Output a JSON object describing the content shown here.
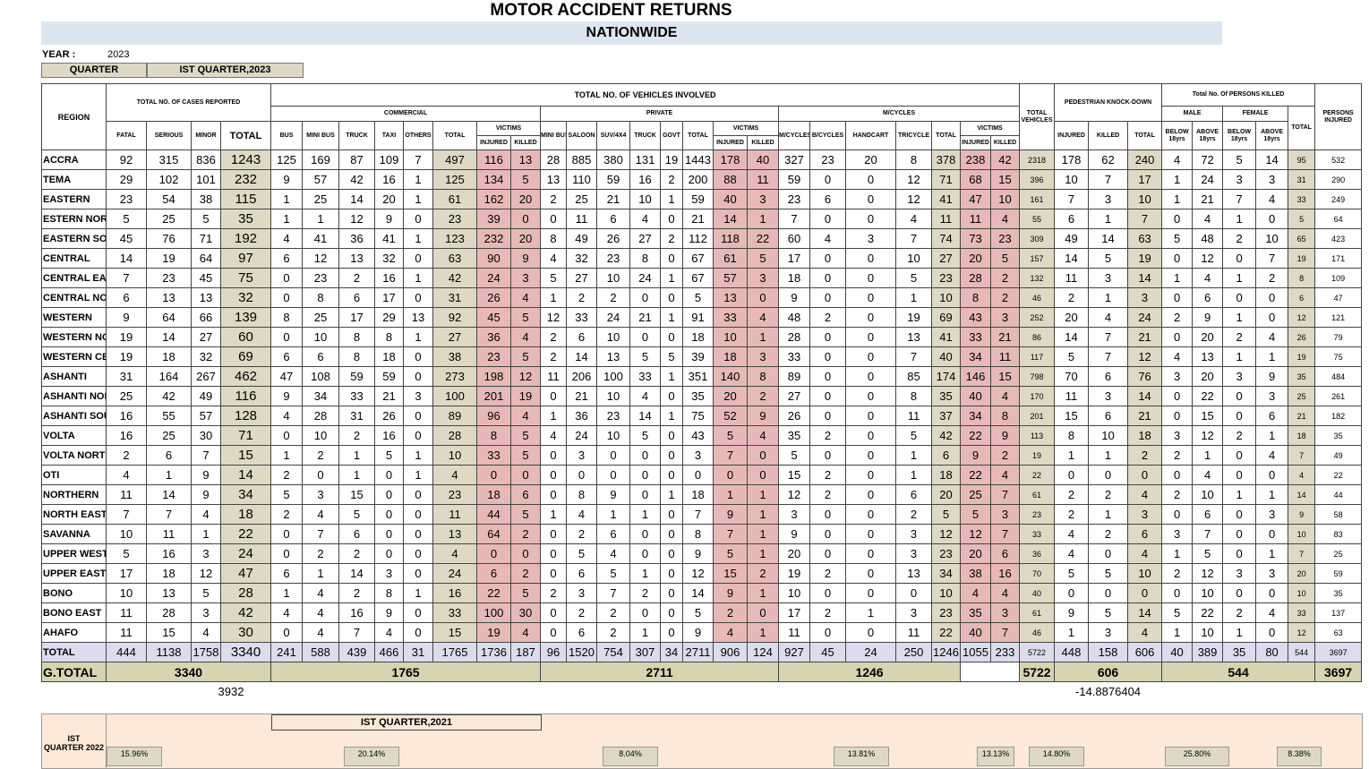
{
  "title": "MOTOR ACCIDENT RETURNS",
  "subtitle": "NATIONWIDE",
  "year_label": "YEAR :",
  "year": "2023",
  "quarter_label": "QUARTER",
  "quarter": "IST QUARTER,2023",
  "table": {
    "header": {
      "region": "REGION",
      "cases": "TOTAL NO. OF CASES REPORTED",
      "vehicles": "TOTAL NO. OF VEHICLES INVOLVED",
      "commercial": "COMMERCIAL",
      "private": "PRIVATE",
      "mcycles": "M/CYCLES",
      "total_vehicles": "TOTAL VEHICLES",
      "pedestrian": "PEDESTRIAN KNOCK-DOWN",
      "killed": "Total No. Of PERSONS KILLED",
      "male": "MALE",
      "female": "FEMALE",
      "killed_total": "TOTAL",
      "persons_injured": "PERSONS INJURED",
      "victims": "VICTIMS",
      "injured": "INJURED",
      "killed_lbl": "KILLED",
      "cases_cols": [
        "FATAL",
        "SERIOUS",
        "MINOR",
        "TOTAL"
      ],
      "commercial_cols": [
        "BUS",
        "MINI BUS",
        "TRUCK",
        "TAXI",
        "OTHERS",
        "TOTAL"
      ],
      "private_cols": [
        "MINI BUS",
        "SALOON",
        "SUV/4X4",
        "TRUCK",
        "GOVT",
        "TOTAL"
      ],
      "moto_cols": [
        "M/CYCLES",
        "B/CYCLES",
        "HANDCART",
        "TRICYCLE",
        "TOTAL"
      ],
      "ped_cols": [
        "INJURED",
        "KILLED",
        "TOTAL"
      ],
      "killed_cols": [
        "BELOW 18yrs",
        "ABOVE 18yrs",
        "BELOW 18yrs",
        "ABOVE 18yrs"
      ]
    },
    "rows": [
      {
        "region": "ACCRA",
        "values": [
          92,
          315,
          836,
          1243,
          125,
          169,
          87,
          109,
          7,
          497,
          116,
          13,
          28,
          885,
          380,
          131,
          19,
          1443,
          178,
          40,
          327,
          23,
          20,
          8,
          378,
          238,
          42,
          2318,
          178,
          62,
          240,
          4,
          72,
          5,
          14,
          95,
          532
        ]
      },
      {
        "region": "TEMA",
        "values": [
          29,
          102,
          101,
          232,
          9,
          57,
          42,
          16,
          1,
          125,
          134,
          5,
          13,
          110,
          59,
          16,
          2,
          200,
          88,
          11,
          59,
          0,
          0,
          12,
          71,
          68,
          15,
          396,
          10,
          7,
          17,
          1,
          24,
          3,
          3,
          31,
          290
        ]
      },
      {
        "region": "EASTERN",
        "values": [
          23,
          54,
          38,
          115,
          1,
          25,
          14,
          20,
          1,
          61,
          162,
          20,
          2,
          25,
          21,
          10,
          1,
          59,
          40,
          3,
          23,
          6,
          0,
          12,
          41,
          47,
          10,
          161,
          7,
          3,
          10,
          1,
          21,
          7,
          4,
          33,
          249
        ]
      },
      {
        "region": "ESTERN NORT",
        "values": [
          5,
          25,
          5,
          35,
          1,
          1,
          12,
          9,
          0,
          23,
          39,
          0,
          0,
          11,
          6,
          4,
          0,
          21,
          14,
          1,
          7,
          0,
          0,
          4,
          11,
          11,
          4,
          55,
          6,
          1,
          7,
          0,
          4,
          1,
          0,
          5,
          64
        ]
      },
      {
        "region": "EASTERN SOU",
        "values": [
          45,
          76,
          71,
          192,
          4,
          41,
          36,
          41,
          1,
          123,
          232,
          20,
          8,
          49,
          26,
          27,
          2,
          112,
          118,
          22,
          60,
          4,
          3,
          7,
          74,
          73,
          23,
          309,
          49,
          14,
          63,
          5,
          48,
          2,
          10,
          65,
          423
        ]
      },
      {
        "region": "CENTRAL",
        "values": [
          14,
          19,
          64,
          97,
          6,
          12,
          13,
          32,
          0,
          63,
          90,
          9,
          4,
          32,
          23,
          8,
          0,
          67,
          61,
          5,
          17,
          0,
          0,
          10,
          27,
          20,
          5,
          157,
          14,
          5,
          19,
          0,
          12,
          0,
          7,
          19,
          171
        ]
      },
      {
        "region": "CENTRAL EAS",
        "values": [
          7,
          23,
          45,
          75,
          0,
          23,
          2,
          16,
          1,
          42,
          24,
          3,
          5,
          27,
          10,
          24,
          1,
          67,
          57,
          3,
          18,
          0,
          0,
          5,
          23,
          28,
          2,
          132,
          11,
          3,
          14,
          1,
          4,
          1,
          2,
          8,
          109
        ]
      },
      {
        "region": "CENTRAL NOR",
        "values": [
          6,
          13,
          13,
          32,
          0,
          8,
          6,
          17,
          0,
          31,
          26,
          4,
          1,
          2,
          2,
          0,
          0,
          5,
          13,
          0,
          9,
          0,
          0,
          1,
          10,
          8,
          2,
          46,
          2,
          1,
          3,
          0,
          6,
          0,
          0,
          6,
          47
        ]
      },
      {
        "region": "WESTERN",
        "values": [
          9,
          64,
          66,
          139,
          8,
          25,
          17,
          29,
          13,
          92,
          45,
          5,
          12,
          33,
          24,
          21,
          1,
          91,
          33,
          4,
          48,
          2,
          0,
          19,
          69,
          43,
          3,
          252,
          20,
          4,
          24,
          2,
          9,
          1,
          0,
          12,
          121
        ]
      },
      {
        "region": "WESTERN NO",
        "values": [
          19,
          14,
          27,
          60,
          0,
          10,
          8,
          8,
          1,
          27,
          36,
          4,
          2,
          6,
          10,
          0,
          0,
          18,
          10,
          1,
          28,
          0,
          0,
          13,
          41,
          33,
          21,
          86,
          14,
          7,
          21,
          0,
          20,
          2,
          4,
          26,
          79
        ]
      },
      {
        "region": "WESTERN CEI",
        "values": [
          19,
          18,
          32,
          69,
          6,
          6,
          8,
          18,
          0,
          38,
          23,
          5,
          2,
          14,
          13,
          5,
          5,
          39,
          18,
          3,
          33,
          0,
          0,
          7,
          40,
          34,
          11,
          117,
          5,
          7,
          12,
          4,
          13,
          1,
          1,
          19,
          75
        ]
      },
      {
        "region": "ASHANTI",
        "values": [
          31,
          164,
          267,
          462,
          47,
          108,
          59,
          59,
          0,
          273,
          198,
          12,
          11,
          206,
          100,
          33,
          1,
          351,
          140,
          8,
          89,
          0,
          0,
          85,
          174,
          146,
          15,
          798,
          70,
          6,
          76,
          3,
          20,
          3,
          9,
          35,
          484
        ]
      },
      {
        "region": "ASHANTI NOR",
        "values": [
          25,
          42,
          49,
          116,
          9,
          34,
          33,
          21,
          3,
          100,
          201,
          19,
          0,
          21,
          10,
          4,
          0,
          35,
          20,
          2,
          27,
          0,
          0,
          8,
          35,
          40,
          4,
          170,
          11,
          3,
          14,
          0,
          22,
          0,
          3,
          25,
          261
        ]
      },
      {
        "region": "ASHANTI SOU",
        "values": [
          16,
          55,
          57,
          128,
          4,
          28,
          31,
          26,
          0,
          89,
          96,
          4,
          1,
          36,
          23,
          14,
          1,
          75,
          52,
          9,
          26,
          0,
          0,
          11,
          37,
          34,
          8,
          201,
          15,
          6,
          21,
          0,
          15,
          0,
          6,
          21,
          182
        ]
      },
      {
        "region": "VOLTA",
        "values": [
          16,
          25,
          30,
          71,
          0,
          10,
          2,
          16,
          0,
          28,
          8,
          5,
          4,
          24,
          10,
          5,
          0,
          43,
          5,
          4,
          35,
          2,
          0,
          5,
          42,
          22,
          9,
          113,
          8,
          10,
          18,
          3,
          12,
          2,
          1,
          18,
          35
        ]
      },
      {
        "region": "VOLTA NORTH",
        "values": [
          2,
          6,
          7,
          15,
          1,
          2,
          1,
          5,
          1,
          10,
          33,
          5,
          0,
          3,
          0,
          0,
          0,
          3,
          7,
          0,
          5,
          0,
          0,
          1,
          6,
          9,
          2,
          19,
          1,
          1,
          2,
          2,
          1,
          0,
          4,
          7,
          49
        ]
      },
      {
        "region": "OTI",
        "values": [
          4,
          1,
          9,
          14,
          2,
          0,
          1,
          0,
          1,
          4,
          0,
          0,
          0,
          0,
          0,
          0,
          0,
          0,
          0,
          0,
          15,
          2,
          0,
          1,
          18,
          22,
          4,
          22,
          0,
          0,
          0,
          0,
          4,
          0,
          0,
          4,
          22
        ]
      },
      {
        "region": "NORTHERN",
        "values": [
          11,
          14,
          9,
          34,
          5,
          3,
          15,
          0,
          0,
          23,
          18,
          6,
          0,
          8,
          9,
          0,
          1,
          18,
          1,
          1,
          12,
          2,
          0,
          6,
          20,
          25,
          7,
          61,
          2,
          2,
          4,
          2,
          10,
          1,
          1,
          14,
          44
        ]
      },
      {
        "region": "NORTH EAST",
        "values": [
          7,
          7,
          4,
          18,
          2,
          4,
          5,
          0,
          0,
          11,
          44,
          5,
          1,
          4,
          1,
          1,
          0,
          7,
          9,
          1,
          3,
          0,
          0,
          2,
          5,
          5,
          3,
          23,
          2,
          1,
          3,
          0,
          6,
          0,
          3,
          9,
          58
        ]
      },
      {
        "region": "SAVANNA",
        "values": [
          10,
          11,
          1,
          22,
          0,
          7,
          6,
          0,
          0,
          13,
          64,
          2,
          0,
          2,
          6,
          0,
          0,
          8,
          7,
          1,
          9,
          0,
          0,
          3,
          12,
          12,
          7,
          33,
          4,
          2,
          6,
          3,
          7,
          0,
          0,
          10,
          83
        ]
      },
      {
        "region": "UPPER WEST",
        "values": [
          5,
          16,
          3,
          24,
          0,
          2,
          2,
          0,
          0,
          4,
          0,
          0,
          0,
          5,
          4,
          0,
          0,
          9,
          5,
          1,
          20,
          0,
          0,
          3,
          23,
          20,
          6,
          36,
          4,
          0,
          4,
          1,
          5,
          0,
          1,
          7,
          25
        ]
      },
      {
        "region": "UPPER EAST",
        "values": [
          17,
          18,
          12,
          47,
          6,
          1,
          14,
          3,
          0,
          24,
          6,
          2,
          0,
          6,
          5,
          1,
          0,
          12,
          15,
          2,
          19,
          2,
          0,
          13,
          34,
          38,
          16,
          70,
          5,
          5,
          10,
          2,
          12,
          3,
          3,
          20,
          59
        ]
      },
      {
        "region": "BONO",
        "values": [
          10,
          13,
          5,
          28,
          1,
          4,
          2,
          8,
          1,
          16,
          22,
          5,
          2,
          3,
          7,
          2,
          0,
          14,
          9,
          1,
          10,
          0,
          0,
          0,
          10,
          4,
          4,
          40,
          0,
          0,
          0,
          0,
          10,
          0,
          0,
          10,
          35
        ]
      },
      {
        "region": "BONO EAST",
        "values": [
          11,
          28,
          3,
          42,
          4,
          4,
          16,
          9,
          0,
          33,
          100,
          30,
          0,
          2,
          2,
          0,
          0,
          5,
          2,
          0,
          17,
          2,
          1,
          3,
          23,
          35,
          3,
          61,
          9,
          5,
          14,
          5,
          22,
          2,
          4,
          33,
          137
        ]
      },
      {
        "region": "AHAFO",
        "values": [
          11,
          15,
          4,
          30,
          0,
          4,
          7,
          4,
          0,
          15,
          19,
          4,
          0,
          6,
          2,
          1,
          0,
          9,
          4,
          1,
          11,
          0,
          0,
          11,
          22,
          40,
          7,
          46,
          1,
          3,
          4,
          1,
          10,
          1,
          0,
          12,
          63
        ]
      }
    ],
    "total": {
      "region": "TOTAL",
      "values": [
        444,
        1138,
        1758,
        3340,
        241,
        588,
        439,
        466,
        31,
        1765,
        1736,
        187,
        96,
        1520,
        754,
        307,
        34,
        2711,
        906,
        124,
        927,
        45,
        24,
        250,
        1246,
        1055,
        233,
        5722,
        448,
        158,
        606,
        40,
        389,
        35,
        80,
        544,
        3697
      ]
    },
    "grand_total": {
      "region": "G.TOTAL",
      "cases": 3340,
      "commercial": 1765,
      "private": 2711,
      "mcycles": 1246,
      "total_vehicles": 5722,
      "pedestrian": 606,
      "killed": 544,
      "persons_injured": 3697
    },
    "notes": {
      "cases": "3932",
      "pedestrian": "-14.8876404"
    }
  },
  "comparison": {
    "label": "IST",
    "label2": "QUARTER 2022",
    "period": "IST QUARTER,2021",
    "percents": [
      "15.96%",
      "20.14%",
      "8.04%",
      "13.81%",
      "13.13%",
      "14.80%",
      "25.80%",
      "8.38%"
    ]
  }
}
